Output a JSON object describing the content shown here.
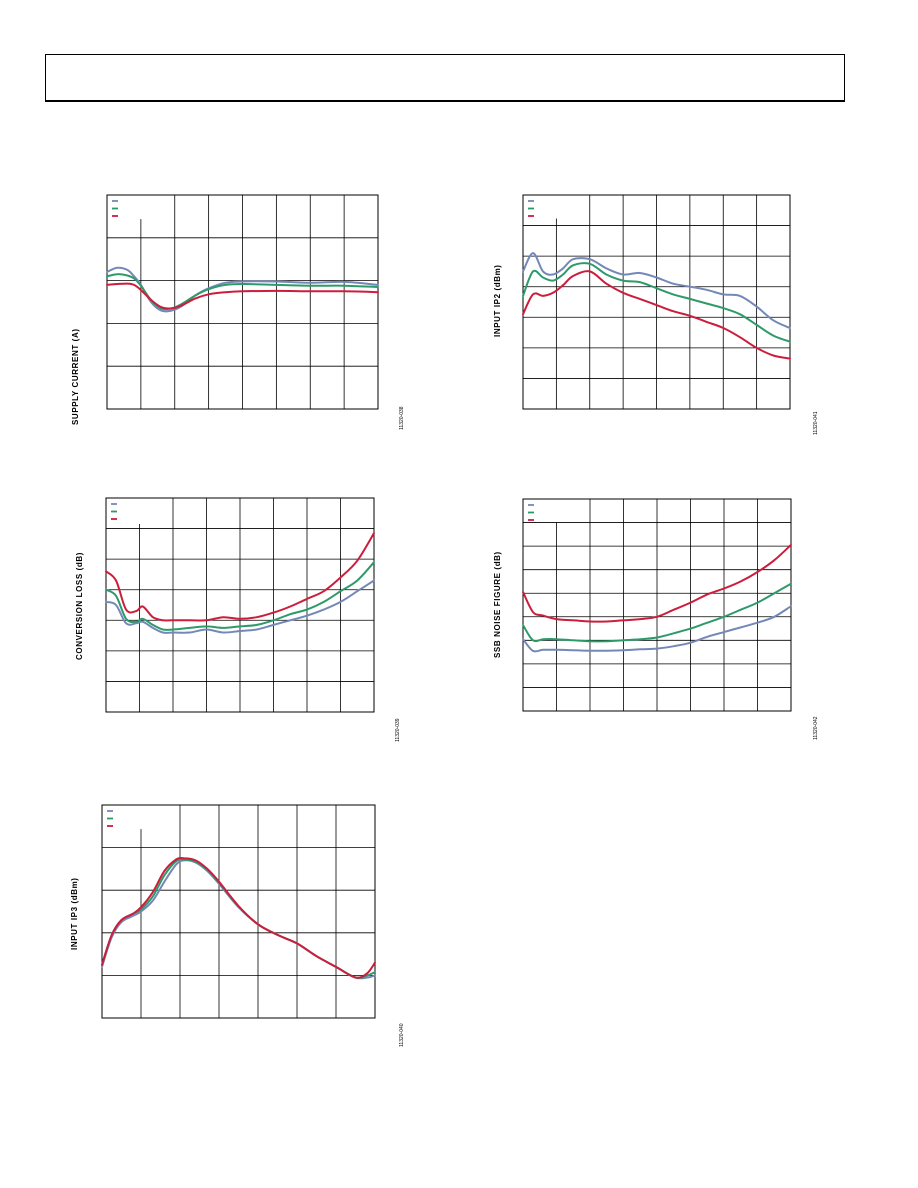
{
  "page": {
    "header": ""
  },
  "colors": {
    "series_1": "#7488b8",
    "series_2": "#2e9a6a",
    "series_3": "#cc1d3c",
    "grid": "#000000"
  },
  "chart_data": [
    {
      "id": "chart-supply-current",
      "type": "line",
      "title": "",
      "xlabel": "",
      "ylabel": "SUPPLY CURRENT (A)",
      "figure_id": "11320-038",
      "grid": true,
      "legend_position": "top-left",
      "xlim": [
        0,
        8
      ],
      "ylim": [
        0,
        5
      ],
      "series": [
        {
          "x": [
            0,
            0.3,
            0.6,
            0.8,
            1.0,
            1.3,
            1.6,
            1.9,
            2.2,
            2.6,
            3.0,
            3.5,
            4.0,
            5.0,
            6.0,
            7.0,
            8.0
          ],
          "y": [
            3.2,
            3.3,
            3.25,
            3.1,
            2.9,
            2.5,
            2.3,
            2.3,
            2.4,
            2.65,
            2.82,
            2.95,
            2.98,
            2.98,
            2.95,
            2.97,
            2.9
          ]
        },
        {
          "x": [
            0,
            0.3,
            0.6,
            0.8,
            1.0,
            1.3,
            1.6,
            1.9,
            2.2,
            2.6,
            3.0,
            3.5,
            4.0,
            5.0,
            6.0,
            7.0,
            8.0
          ],
          "y": [
            3.1,
            3.15,
            3.12,
            3.05,
            2.88,
            2.55,
            2.35,
            2.35,
            2.45,
            2.65,
            2.8,
            2.9,
            2.92,
            2.9,
            2.88,
            2.88,
            2.85
          ]
        },
        {
          "x": [
            0,
            0.3,
            0.6,
            0.8,
            1.0,
            1.3,
            1.6,
            1.9,
            2.2,
            2.6,
            3.0,
            3.5,
            4.0,
            5.0,
            6.0,
            7.0,
            8.0
          ],
          "y": [
            2.9,
            2.92,
            2.93,
            2.9,
            2.78,
            2.55,
            2.38,
            2.35,
            2.42,
            2.58,
            2.68,
            2.73,
            2.75,
            2.76,
            2.75,
            2.75,
            2.73
          ]
        }
      ]
    },
    {
      "id": "chart-input-ip2",
      "type": "line",
      "title": "",
      "xlabel": "",
      "ylabel": "INPUT IP2 (dBm)",
      "figure_id": "11320-041",
      "grid": true,
      "legend_position": "top-left",
      "xlim": [
        0,
        8
      ],
      "ylim": [
        0,
        7
      ],
      "series": [
        {
          "x": [
            0,
            0.3,
            0.6,
            0.9,
            1.2,
            1.5,
            2.0,
            2.5,
            3.0,
            3.5,
            4.0,
            4.5,
            5.0,
            5.5,
            6.0,
            6.5,
            7.0,
            7.5,
            8.0
          ],
          "y": [
            4.5,
            5.1,
            4.5,
            4.4,
            4.6,
            4.9,
            4.9,
            4.6,
            4.4,
            4.45,
            4.3,
            4.1,
            4.0,
            3.9,
            3.75,
            3.7,
            3.35,
            2.9,
            2.65
          ]
        },
        {
          "x": [
            0,
            0.3,
            0.6,
            0.9,
            1.2,
            1.5,
            2.0,
            2.5,
            3.0,
            3.5,
            4.0,
            4.5,
            5.0,
            5.5,
            6.0,
            6.5,
            7.0,
            7.5,
            8.0
          ],
          "y": [
            3.7,
            4.5,
            4.3,
            4.2,
            4.4,
            4.7,
            4.75,
            4.4,
            4.2,
            4.15,
            3.95,
            3.75,
            3.6,
            3.45,
            3.3,
            3.1,
            2.75,
            2.4,
            2.2
          ]
        },
        {
          "x": [
            0,
            0.3,
            0.6,
            0.9,
            1.2,
            1.5,
            2.0,
            2.5,
            3.0,
            3.5,
            4.0,
            4.5,
            5.0,
            5.5,
            6.0,
            6.5,
            7.0,
            7.5,
            8.0
          ],
          "y": [
            3.1,
            3.75,
            3.7,
            3.8,
            4.05,
            4.35,
            4.5,
            4.1,
            3.8,
            3.6,
            3.4,
            3.2,
            3.05,
            2.85,
            2.65,
            2.35,
            2.0,
            1.75,
            1.65
          ]
        }
      ]
    },
    {
      "id": "chart-conversion-loss",
      "type": "line",
      "title": "",
      "xlabel": "",
      "ylabel": "CONVERSION LOSS (dB)",
      "figure_id": "11320-039",
      "grid": true,
      "legend_position": "top-left",
      "xlim": [
        0,
        8
      ],
      "ylim": [
        0,
        7
      ],
      "series": [
        {
          "x": [
            0,
            0.3,
            0.6,
            0.9,
            1.1,
            1.4,
            1.7,
            2.0,
            2.5,
            3.0,
            3.5,
            4.0,
            4.5,
            5.0,
            5.5,
            6.0,
            6.5,
            7.0,
            7.5,
            8.0
          ],
          "y": [
            3.6,
            3.5,
            2.9,
            2.9,
            2.95,
            2.75,
            2.6,
            2.6,
            2.6,
            2.7,
            2.6,
            2.65,
            2.7,
            2.85,
            3.0,
            3.15,
            3.35,
            3.6,
            3.95,
            4.3
          ]
        },
        {
          "x": [
            0,
            0.3,
            0.6,
            0.9,
            1.1,
            1.4,
            1.7,
            2.0,
            2.5,
            3.0,
            3.5,
            4.0,
            4.5,
            5.0,
            5.5,
            6.0,
            6.5,
            7.0,
            7.5,
            8.0
          ],
          "y": [
            4.0,
            3.8,
            3.05,
            2.95,
            3.05,
            2.85,
            2.7,
            2.7,
            2.75,
            2.8,
            2.75,
            2.8,
            2.85,
            3.0,
            3.2,
            3.35,
            3.6,
            3.95,
            4.3,
            4.9
          ]
        },
        {
          "x": [
            0,
            0.3,
            0.6,
            0.9,
            1.1,
            1.4,
            1.7,
            2.0,
            2.5,
            3.0,
            3.5,
            4.0,
            4.5,
            5.0,
            5.5,
            6.0,
            6.5,
            7.0,
            7.5,
            8.0
          ],
          "y": [
            4.6,
            4.3,
            3.35,
            3.3,
            3.45,
            3.1,
            3.0,
            3.0,
            3.0,
            3.0,
            3.1,
            3.05,
            3.1,
            3.25,
            3.45,
            3.7,
            3.95,
            4.4,
            4.95,
            5.85
          ]
        }
      ]
    },
    {
      "id": "chart-ssb-noise-figure",
      "type": "line",
      "title": "",
      "xlabel": "",
      "ylabel": "SSB NOISE FIGURE (dB)",
      "figure_id": "11320-042",
      "grid": true,
      "legend_position": "top-left",
      "xlim": [
        0,
        8
      ],
      "ylim": [
        0,
        9
      ],
      "series": [
        {
          "x": [
            0,
            0.3,
            0.6,
            1.0,
            1.5,
            2.0,
            2.5,
            3.0,
            3.5,
            4.0,
            4.5,
            5.0,
            5.5,
            6.0,
            6.5,
            7.0,
            7.5,
            8.0
          ],
          "y": [
            3.05,
            2.55,
            2.6,
            2.6,
            2.58,
            2.56,
            2.56,
            2.58,
            2.62,
            2.65,
            2.75,
            2.9,
            3.15,
            3.35,
            3.55,
            3.75,
            4.0,
            4.45
          ]
        },
        {
          "x": [
            0,
            0.3,
            0.6,
            1.0,
            1.5,
            2.0,
            2.5,
            3.0,
            3.5,
            4.0,
            4.5,
            5.0,
            5.5,
            6.0,
            6.5,
            7.0,
            7.5,
            8.0
          ],
          "y": [
            3.65,
            3.0,
            3.05,
            3.05,
            3.0,
            2.96,
            2.96,
            3.0,
            3.05,
            3.12,
            3.3,
            3.5,
            3.75,
            4.0,
            4.3,
            4.6,
            5.0,
            5.4
          ]
        },
        {
          "x": [
            0,
            0.3,
            0.6,
            1.0,
            1.5,
            2.0,
            2.5,
            3.0,
            3.5,
            4.0,
            4.5,
            5.0,
            5.5,
            6.0,
            6.5,
            7.0,
            7.5,
            8.0
          ],
          "y": [
            5.05,
            4.2,
            4.05,
            3.9,
            3.85,
            3.8,
            3.8,
            3.85,
            3.9,
            4.0,
            4.3,
            4.6,
            4.95,
            5.2,
            5.5,
            5.9,
            6.4,
            7.05
          ]
        }
      ]
    },
    {
      "id": "chart-input-ip3",
      "type": "line",
      "title": "",
      "xlabel": "",
      "ylabel": "INPUT IP3 (dBm)",
      "figure_id": "11320-040",
      "grid": true,
      "legend_position": "top-left",
      "xlim": [
        0,
        7
      ],
      "ylim": [
        0,
        5
      ],
      "series": [
        {
          "x": [
            0,
            0.25,
            0.5,
            0.8,
            1.0,
            1.3,
            1.6,
            1.9,
            2.1,
            2.4,
            2.7,
            3.0,
            3.5,
            4.0,
            4.5,
            5.0,
            5.5,
            6.0,
            6.5,
            6.8,
            7.0
          ],
          "y": [
            1.2,
            1.9,
            2.25,
            2.4,
            2.5,
            2.75,
            3.2,
            3.6,
            3.7,
            3.65,
            3.45,
            3.15,
            2.6,
            2.2,
            1.95,
            1.75,
            1.45,
            1.2,
            0.95,
            0.95,
            1.0
          ]
        },
        {
          "x": [
            0,
            0.25,
            0.5,
            0.8,
            1.0,
            1.3,
            1.6,
            1.9,
            2.1,
            2.4,
            2.7,
            3.0,
            3.5,
            4.0,
            4.5,
            5.0,
            5.5,
            6.0,
            6.5,
            6.8,
            7.0
          ],
          "y": [
            1.25,
            1.95,
            2.3,
            2.45,
            2.55,
            2.85,
            3.35,
            3.68,
            3.72,
            3.67,
            3.48,
            3.18,
            2.62,
            2.2,
            1.95,
            1.75,
            1.45,
            1.2,
            0.95,
            1.0,
            1.08
          ]
        },
        {
          "x": [
            0,
            0.25,
            0.5,
            0.8,
            1.0,
            1.3,
            1.6,
            1.9,
            2.1,
            2.4,
            2.7,
            3.0,
            3.5,
            4.0,
            4.5,
            5.0,
            5.5,
            6.0,
            6.5,
            6.8,
            7.0
          ],
          "y": [
            1.25,
            1.95,
            2.3,
            2.45,
            2.6,
            2.95,
            3.45,
            3.72,
            3.75,
            3.7,
            3.5,
            3.2,
            2.63,
            2.2,
            1.95,
            1.75,
            1.45,
            1.2,
            0.95,
            1.05,
            1.3
          ]
        }
      ]
    }
  ]
}
